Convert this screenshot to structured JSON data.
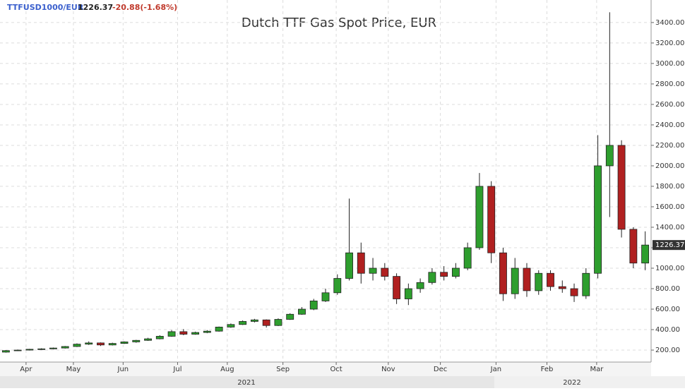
{
  "chart_data": {
    "type": "candlestick",
    "title": "Dutch TTF Gas Spot Price, EUR",
    "symbol": "TTFUSD1000/EUR",
    "last_price": 1226.37,
    "change": "-20.88(-1.68%)",
    "year_labels": [
      "2021",
      "2022"
    ],
    "up_color": "#2e9e2e",
    "down_color": "#b02020",
    "grid": true,
    "xlim": [
      0,
      55
    ],
    "xticks": [
      {
        "value": 2.2,
        "label": "Apr"
      },
      {
        "value": 6.2,
        "label": "May"
      },
      {
        "value": 10.4,
        "label": "Jun"
      },
      {
        "value": 15.0,
        "label": "Jul"
      },
      {
        "value": 19.2,
        "label": "Aug"
      },
      {
        "value": 23.9,
        "label": "Sep"
      },
      {
        "value": 28.4,
        "label": "Oct"
      },
      {
        "value": 32.8,
        "label": "Nov"
      },
      {
        "value": 37.2,
        "label": "Dec"
      },
      {
        "value": 41.9,
        "label": "Jan"
      },
      {
        "value": 46.2,
        "label": "Feb"
      },
      {
        "value": 50.4,
        "label": "Mar"
      }
    ],
    "ylim": [
      83,
      3620
    ],
    "yticks": [
      {
        "value": 200,
        "label": "200.00"
      },
      {
        "value": 400,
        "label": "400.00"
      },
      {
        "value": 600,
        "label": "600.00"
      },
      {
        "value": 800,
        "label": "800.00"
      },
      {
        "value": 1000,
        "label": "1000.00"
      },
      {
        "value": 1200,
        "label": "1200.00"
      },
      {
        "value": 1400,
        "label": "1400.00"
      },
      {
        "value": 1600,
        "label": "1600.00"
      },
      {
        "value": 1800,
        "label": "1800.00"
      },
      {
        "value": 2000,
        "label": "2000.00"
      },
      {
        "value": 2200,
        "label": "2200.00"
      },
      {
        "value": 2400,
        "label": "2400.00"
      },
      {
        "value": 2600,
        "label": "2600.00"
      },
      {
        "value": 2800,
        "label": "2800.00"
      },
      {
        "value": 3000,
        "label": "3000.00"
      },
      {
        "value": 3200,
        "label": "3200.00"
      },
      {
        "value": 3400,
        "label": "3400.00"
      }
    ],
    "open": [
      180,
      195,
      200,
      208,
      212,
      220,
      235,
      258,
      270,
      250,
      265,
      280,
      295,
      310,
      335,
      380,
      355,
      372,
      385,
      425,
      450,
      480,
      495,
      440,
      500,
      550,
      600,
      680,
      760,
      900,
      1150,
      950,
      1000,
      920,
      700,
      800,
      860,
      960,
      920,
      1000,
      1200,
      1800,
      1150,
      750,
      1000,
      780,
      950,
      820,
      800,
      730,
      950,
      2000,
      2200,
      1380,
      1050
    ],
    "high": [
      200,
      205,
      212,
      218,
      225,
      240,
      265,
      285,
      275,
      272,
      285,
      300,
      320,
      345,
      395,
      405,
      380,
      395,
      430,
      460,
      490,
      505,
      500,
      510,
      560,
      620,
      700,
      800,
      940,
      1680,
      1250,
      1100,
      1050,
      950,
      850,
      900,
      1000,
      1020,
      1050,
      1250,
      1930,
      1850,
      1200,
      1100,
      1050,
      980,
      980,
      880,
      850,
      1000,
      2300,
      3500,
      2250,
      1400,
      1360
    ],
    "low": [
      175,
      190,
      196,
      202,
      208,
      215,
      230,
      250,
      240,
      245,
      260,
      272,
      290,
      305,
      330,
      345,
      350,
      365,
      380,
      418,
      445,
      470,
      420,
      435,
      495,
      545,
      590,
      670,
      740,
      880,
      850,
      880,
      880,
      650,
      640,
      760,
      840,
      880,
      900,
      980,
      1180,
      1050,
      680,
      700,
      720,
      740,
      780,
      760,
      670,
      700,
      900,
      1500,
      1300,
      1000,
      980
    ],
    "close": [
      195,
      200,
      208,
      212,
      220,
      235,
      258,
      270,
      250,
      265,
      280,
      295,
      310,
      335,
      380,
      355,
      372,
      385,
      425,
      450,
      480,
      495,
      440,
      500,
      550,
      600,
      680,
      760,
      900,
      1150,
      950,
      1000,
      920,
      700,
      800,
      860,
      960,
      920,
      1000,
      1200,
      1800,
      1150,
      750,
      1000,
      780,
      950,
      820,
      800,
      730,
      950,
      2000,
      2200,
      1380,
      1050,
      1226.37
    ]
  }
}
